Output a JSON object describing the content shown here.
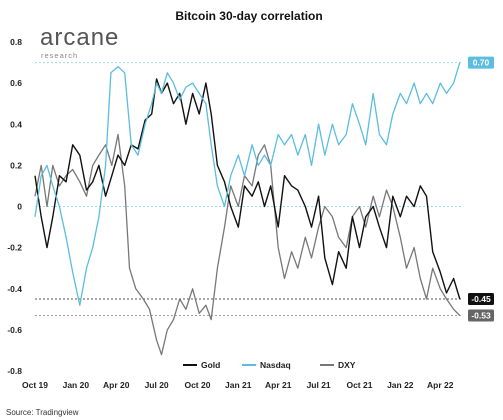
{
  "logo": {
    "main": "arcane",
    "sub": "research"
  },
  "source": "Source: Tradingview",
  "colors": {
    "gold": "#111111",
    "nasdaq": "#5bbde0",
    "dxy": "#777777",
    "zero": "#9ed8ea",
    "ref": "#9aa0a6"
  },
  "chart_data": {
    "type": "line",
    "title": "Bitcoin 30-day correlation",
    "xlabel": "",
    "ylabel": "",
    "ylim": [
      -0.8,
      0.8
    ],
    "y_ticks": [
      "0.8",
      "0.6",
      "0.4",
      "0.2",
      "0",
      "-0.2",
      "-0.4",
      "-0.6",
      "-0.8"
    ],
    "x_ticks": [
      "Oct 19",
      "Jan 20",
      "Apr 20",
      "Jul 20",
      "Oct 20",
      "Jan 21",
      "Apr 21",
      "Jul 21",
      "Oct 21",
      "Jan 22",
      "Apr 22"
    ],
    "x_start": "2019-10-01",
    "x_end": "2022-05-20",
    "legend_position": "bottom-center",
    "grid": false,
    "reference_lines": [
      {
        "value": 0.7,
        "label": "0.70",
        "series": "Nasdaq"
      },
      {
        "value": -0.45,
        "label": "-0.45",
        "series": "Gold"
      },
      {
        "value": -0.53,
        "label": "-0.53",
        "series": "DXY"
      }
    ],
    "series": [
      {
        "name": "Gold",
        "key": "gold",
        "points": [
          [
            "2019-10-01",
            0.15
          ],
          [
            "2019-10-15",
            -0.05
          ],
          [
            "2019-10-28",
            -0.2
          ],
          [
            "2019-11-10",
            -0.05
          ],
          [
            "2019-11-25",
            0.15
          ],
          [
            "2019-12-10",
            0.12
          ],
          [
            "2019-12-25",
            0.3
          ],
          [
            "2020-01-10",
            0.25
          ],
          [
            "2020-01-25",
            0.08
          ],
          [
            "2020-02-08",
            0.12
          ],
          [
            "2020-02-22",
            0.2
          ],
          [
            "2020-03-08",
            0.05
          ],
          [
            "2020-03-22",
            0.15
          ],
          [
            "2020-04-05",
            0.25
          ],
          [
            "2020-04-20",
            0.2
          ],
          [
            "2020-05-05",
            0.3
          ],
          [
            "2020-05-20",
            0.28
          ],
          [
            "2020-06-05",
            0.42
          ],
          [
            "2020-06-20",
            0.45
          ],
          [
            "2020-07-01",
            0.62
          ],
          [
            "2020-07-12",
            0.55
          ],
          [
            "2020-07-25",
            0.6
          ],
          [
            "2020-08-08",
            0.5
          ],
          [
            "2020-08-22",
            0.55
          ],
          [
            "2020-09-05",
            0.4
          ],
          [
            "2020-09-20",
            0.55
          ],
          [
            "2020-10-05",
            0.45
          ],
          [
            "2020-10-20",
            0.6
          ],
          [
            "2020-11-01",
            0.45
          ],
          [
            "2020-11-15",
            0.2
          ],
          [
            "2020-12-01",
            0.12
          ],
          [
            "2020-12-15",
            0.0
          ],
          [
            "2021-01-01",
            -0.1
          ],
          [
            "2021-01-15",
            0.1
          ],
          [
            "2021-02-01",
            0.05
          ],
          [
            "2021-02-15",
            0.12
          ],
          [
            "2021-03-01",
            0.0
          ],
          [
            "2021-03-15",
            0.1
          ],
          [
            "2021-04-01",
            -0.1
          ],
          [
            "2021-04-15",
            0.15
          ],
          [
            "2021-05-01",
            0.1
          ],
          [
            "2021-05-15",
            0.08
          ],
          [
            "2021-06-01",
            0.0
          ],
          [
            "2021-06-15",
            -0.1
          ],
          [
            "2021-07-01",
            0.05
          ],
          [
            "2021-07-15",
            -0.25
          ],
          [
            "2021-08-01",
            -0.38
          ],
          [
            "2021-08-15",
            -0.22
          ],
          [
            "2021-09-01",
            -0.3
          ],
          [
            "2021-09-15",
            -0.05
          ],
          [
            "2021-10-01",
            -0.2
          ],
          [
            "2021-10-15",
            -0.05
          ],
          [
            "2021-11-01",
            0.0
          ],
          [
            "2021-11-15",
            -0.1
          ],
          [
            "2021-12-01",
            -0.2
          ],
          [
            "2021-12-15",
            0.05
          ],
          [
            "2022-01-01",
            -0.05
          ],
          [
            "2022-01-15",
            0.05
          ],
          [
            "2022-02-01",
            0.0
          ],
          [
            "2022-02-15",
            0.1
          ],
          [
            "2022-03-01",
            0.05
          ],
          [
            "2022-03-15",
            -0.22
          ],
          [
            "2022-04-01",
            -0.32
          ],
          [
            "2022-04-15",
            -0.42
          ],
          [
            "2022-05-01",
            -0.35
          ],
          [
            "2022-05-15",
            -0.45
          ]
        ]
      },
      {
        "name": "Nasdaq",
        "key": "nasdaq",
        "points": [
          [
            "2019-10-01",
            -0.05
          ],
          [
            "2019-10-15",
            0.15
          ],
          [
            "2019-10-28",
            0.2
          ],
          [
            "2019-11-10",
            0.1
          ],
          [
            "2019-11-25",
            0.0
          ],
          [
            "2019-12-10",
            -0.15
          ],
          [
            "2019-12-25",
            -0.32
          ],
          [
            "2020-01-10",
            -0.48
          ],
          [
            "2020-01-25",
            -0.3
          ],
          [
            "2020-02-08",
            -0.2
          ],
          [
            "2020-02-22",
            -0.05
          ],
          [
            "2020-03-08",
            0.2
          ],
          [
            "2020-03-20",
            0.65
          ],
          [
            "2020-04-05",
            0.68
          ],
          [
            "2020-04-20",
            0.65
          ],
          [
            "2020-05-05",
            0.3
          ],
          [
            "2020-05-20",
            0.25
          ],
          [
            "2020-06-05",
            0.4
          ],
          [
            "2020-06-20",
            0.5
          ],
          [
            "2020-07-01",
            0.6
          ],
          [
            "2020-07-12",
            0.55
          ],
          [
            "2020-07-25",
            0.65
          ],
          [
            "2020-08-08",
            0.6
          ],
          [
            "2020-08-22",
            0.52
          ],
          [
            "2020-09-05",
            0.58
          ],
          [
            "2020-09-20",
            0.6
          ],
          [
            "2020-10-05",
            0.55
          ],
          [
            "2020-10-20",
            0.5
          ],
          [
            "2020-11-01",
            0.3
          ],
          [
            "2020-11-15",
            0.1
          ],
          [
            "2020-12-01",
            0.0
          ],
          [
            "2020-12-15",
            0.15
          ],
          [
            "2021-01-01",
            0.25
          ],
          [
            "2021-01-15",
            0.15
          ],
          [
            "2021-02-01",
            0.3
          ],
          [
            "2021-02-15",
            0.2
          ],
          [
            "2021-03-01",
            0.25
          ],
          [
            "2021-03-15",
            0.2
          ],
          [
            "2021-04-01",
            0.35
          ],
          [
            "2021-04-15",
            0.3
          ],
          [
            "2021-05-01",
            0.35
          ],
          [
            "2021-05-15",
            0.25
          ],
          [
            "2021-06-01",
            0.35
          ],
          [
            "2021-06-15",
            0.2
          ],
          [
            "2021-07-01",
            0.4
          ],
          [
            "2021-07-15",
            0.25
          ],
          [
            "2021-08-01",
            0.4
          ],
          [
            "2021-08-15",
            0.3
          ],
          [
            "2021-09-01",
            0.35
          ],
          [
            "2021-09-15",
            0.5
          ],
          [
            "2021-10-01",
            0.4
          ],
          [
            "2021-10-15",
            0.3
          ],
          [
            "2021-11-01",
            0.55
          ],
          [
            "2021-11-15",
            0.35
          ],
          [
            "2021-12-01",
            0.3
          ],
          [
            "2021-12-15",
            0.45
          ],
          [
            "2022-01-01",
            0.55
          ],
          [
            "2022-01-15",
            0.5
          ],
          [
            "2022-02-01",
            0.6
          ],
          [
            "2022-02-15",
            0.5
          ],
          [
            "2022-03-01",
            0.55
          ],
          [
            "2022-03-15",
            0.5
          ],
          [
            "2022-04-01",
            0.6
          ],
          [
            "2022-04-15",
            0.55
          ],
          [
            "2022-05-01",
            0.6
          ],
          [
            "2022-05-15",
            0.7
          ]
        ]
      },
      {
        "name": "DXY",
        "key": "dxy",
        "points": [
          [
            "2019-10-01",
            0.05
          ],
          [
            "2019-10-15",
            0.2
          ],
          [
            "2019-10-28",
            0.0
          ],
          [
            "2019-11-10",
            0.2
          ],
          [
            "2019-11-25",
            0.1
          ],
          [
            "2019-12-10",
            0.15
          ],
          [
            "2019-12-25",
            0.18
          ],
          [
            "2020-01-10",
            0.12
          ],
          [
            "2020-01-25",
            0.05
          ],
          [
            "2020-02-08",
            0.2
          ],
          [
            "2020-02-22",
            0.25
          ],
          [
            "2020-03-08",
            0.3
          ],
          [
            "2020-03-22",
            0.2
          ],
          [
            "2020-04-05",
            0.35
          ],
          [
            "2020-04-20",
            0.1
          ],
          [
            "2020-05-01",
            -0.3
          ],
          [
            "2020-05-15",
            -0.4
          ],
          [
            "2020-06-01",
            -0.45
          ],
          [
            "2020-06-15",
            -0.5
          ],
          [
            "2020-07-01",
            -0.65
          ],
          [
            "2020-07-12",
            -0.72
          ],
          [
            "2020-07-25",
            -0.6
          ],
          [
            "2020-08-08",
            -0.55
          ],
          [
            "2020-08-22",
            -0.45
          ],
          [
            "2020-09-05",
            -0.5
          ],
          [
            "2020-09-20",
            -0.4
          ],
          [
            "2020-10-05",
            -0.52
          ],
          [
            "2020-10-20",
            -0.48
          ],
          [
            "2020-11-01",
            -0.55
          ],
          [
            "2020-11-15",
            -0.3
          ],
          [
            "2020-12-01",
            -0.1
          ],
          [
            "2020-12-15",
            0.1
          ],
          [
            "2021-01-01",
            0.0
          ],
          [
            "2021-01-15",
            0.15
          ],
          [
            "2021-02-01",
            0.1
          ],
          [
            "2021-02-15",
            0.25
          ],
          [
            "2021-03-01",
            0.3
          ],
          [
            "2021-03-15",
            0.2
          ],
          [
            "2021-04-01",
            -0.2
          ],
          [
            "2021-04-15",
            -0.35
          ],
          [
            "2021-05-01",
            -0.22
          ],
          [
            "2021-05-15",
            -0.3
          ],
          [
            "2021-06-01",
            -0.15
          ],
          [
            "2021-06-15",
            -0.25
          ],
          [
            "2021-07-01",
            -0.1
          ],
          [
            "2021-07-15",
            0.0
          ],
          [
            "2021-08-01",
            -0.05
          ],
          [
            "2021-08-15",
            -0.15
          ],
          [
            "2021-09-01",
            -0.2
          ],
          [
            "2021-09-15",
            -0.05
          ],
          [
            "2021-10-01",
            0.0
          ],
          [
            "2021-10-15",
            -0.1
          ],
          [
            "2021-11-01",
            0.05
          ],
          [
            "2021-11-15",
            -0.05
          ],
          [
            "2021-12-01",
            0.08
          ],
          [
            "2021-12-15",
            0.0
          ],
          [
            "2022-01-01",
            -0.15
          ],
          [
            "2022-01-15",
            -0.3
          ],
          [
            "2022-02-01",
            -0.2
          ],
          [
            "2022-02-15",
            -0.35
          ],
          [
            "2022-03-01",
            -0.45
          ],
          [
            "2022-03-15",
            -0.3
          ],
          [
            "2022-04-01",
            -0.4
          ],
          [
            "2022-04-15",
            -0.45
          ],
          [
            "2022-05-01",
            -0.5
          ],
          [
            "2022-05-15",
            -0.53
          ]
        ]
      }
    ]
  }
}
